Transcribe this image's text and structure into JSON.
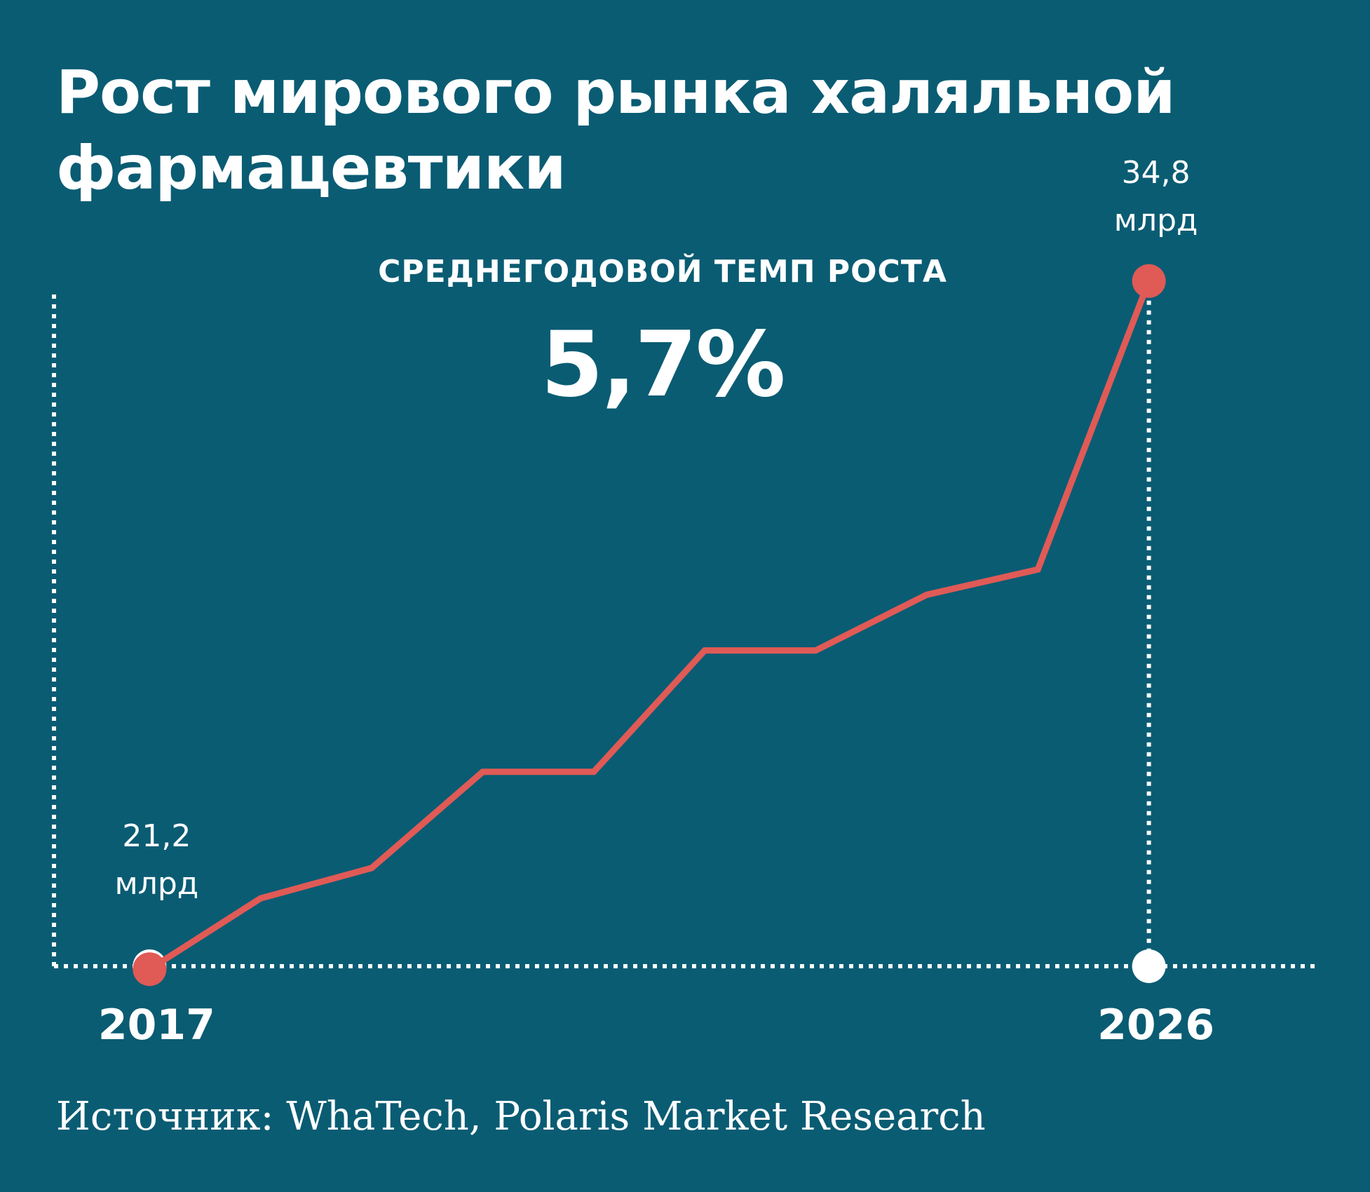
{
  "title_lines": [
    "Рост мирового рынка халяльной",
    "фармацевтики"
  ],
  "subtitle": "СРЕДНЕГОДОВОЙ ТЕМП РОСТА",
  "growth_rate": "5,7%",
  "source": "Источник: WhaTech, Polaris Market Research",
  "colors": {
    "background": "#0a5c73",
    "line": "#e05a56",
    "axis": "#ffffff",
    "text": "#ffffff"
  },
  "chart_data": {
    "type": "line",
    "title": "Рост мирового рынка халяльной фармацевтики",
    "x": [
      2017,
      2018,
      2019,
      2020,
      2021,
      2022,
      2023,
      2024,
      2025,
      2026
    ],
    "values": [
      21.2,
      22.6,
      23.2,
      25.1,
      25.1,
      27.5,
      27.5,
      28.6,
      29.1,
      34.8
    ],
    "unit": "млрд",
    "x_tick_labels": [
      {
        "x": 2017,
        "label": "2017"
      },
      {
        "x": 2026,
        "label": "2026"
      }
    ],
    "point_labels": [
      {
        "index": 0,
        "value": "21,2",
        "unit": "млрд"
      },
      {
        "index": 9,
        "value": "34,8",
        "unit": "млрд"
      }
    ],
    "ylim": [
      19,
      37
    ],
    "xlim": [
      2016,
      2027
    ],
    "grid": false,
    "legend": "none"
  }
}
